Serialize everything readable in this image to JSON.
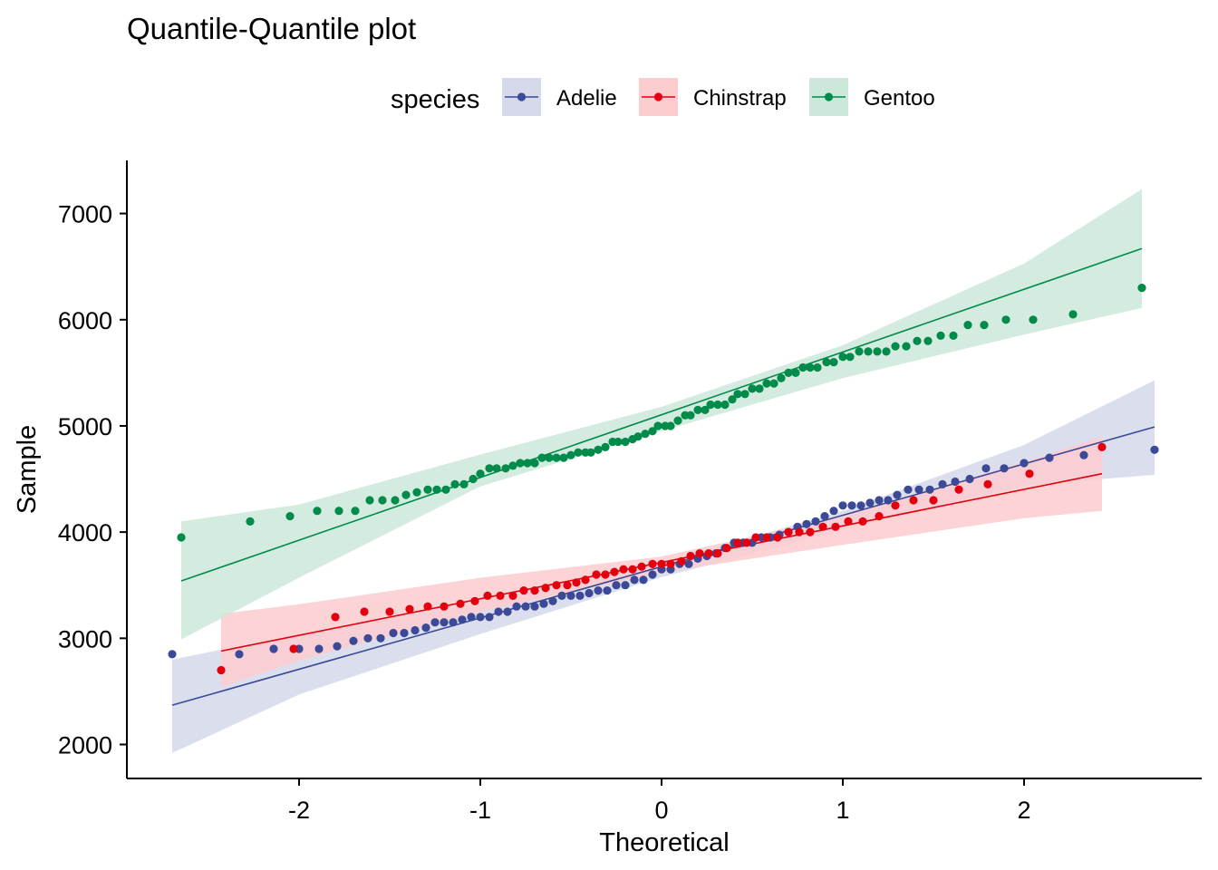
{
  "chart_data": {
    "type": "scatter",
    "title": "Quantile-Quantile plot",
    "xlabel": "Theoretical",
    "ylabel": "Sample",
    "xlim": [
      -2.95,
      2.98
    ],
    "ylim": [
      1680,
      7500
    ],
    "x_ticks": [
      -2,
      -1,
      0,
      1,
      2
    ],
    "x_tick_labels": [
      "-2",
      "-1",
      "0",
      "1",
      "2"
    ],
    "y_ticks": [
      2000,
      3000,
      4000,
      5000,
      6000,
      7000
    ],
    "y_tick_labels": [
      "2000",
      "3000",
      "4000",
      "5000",
      "6000",
      "7000"
    ],
    "grid": false,
    "legend": {
      "title": "species",
      "position": "top",
      "entries": [
        "Adelie",
        "Chinstrap",
        "Gentoo"
      ]
    },
    "series": [
      {
        "name": "Adelie",
        "color": "#3b4996",
        "band_color": "#d5d9ea",
        "line": [
          [
            -2.7,
            2370
          ],
          [
            2.72,
            4990
          ]
        ],
        "band_upper": [
          [
            -2.7,
            2800
          ],
          [
            -2,
            3040
          ],
          [
            -1,
            3330
          ],
          [
            0,
            3705
          ],
          [
            1,
            4200
          ],
          [
            2,
            4820
          ],
          [
            2.72,
            5430
          ]
        ],
        "band_lower": [
          [
            -2.7,
            1920
          ],
          [
            -2,
            2470
          ],
          [
            -1,
            3040
          ],
          [
            0,
            3575
          ],
          [
            1,
            4020
          ],
          [
            2,
            4440
          ],
          [
            2.72,
            4540
          ]
        ],
        "points": [
          [
            -2.7,
            2850
          ],
          [
            -2.33,
            2850
          ],
          [
            -2.14,
            2900
          ],
          [
            -2.0,
            2900
          ],
          [
            -1.89,
            2900
          ],
          [
            -1.79,
            2925
          ],
          [
            -1.7,
            2975
          ],
          [
            -1.62,
            3000
          ],
          [
            -1.55,
            3000
          ],
          [
            -1.48,
            3050
          ],
          [
            -1.42,
            3050
          ],
          [
            -1.36,
            3075
          ],
          [
            -1.3,
            3100
          ],
          [
            -1.25,
            3150
          ],
          [
            -1.2,
            3150
          ],
          [
            -1.15,
            3150
          ],
          [
            -1.1,
            3175
          ],
          [
            -1.05,
            3200
          ],
          [
            -1.0,
            3200
          ],
          [
            -0.95,
            3200
          ],
          [
            -0.9,
            3250
          ],
          [
            -0.85,
            3250
          ],
          [
            -0.8,
            3300
          ],
          [
            -0.75,
            3300
          ],
          [
            -0.7,
            3300
          ],
          [
            -0.65,
            3325
          ],
          [
            -0.6,
            3350
          ],
          [
            -0.55,
            3400
          ],
          [
            -0.5,
            3400
          ],
          [
            -0.45,
            3400
          ],
          [
            -0.4,
            3425
          ],
          [
            -0.35,
            3450
          ],
          [
            -0.3,
            3450
          ],
          [
            -0.25,
            3500
          ],
          [
            -0.2,
            3500
          ],
          [
            -0.15,
            3550
          ],
          [
            -0.1,
            3550
          ],
          [
            -0.05,
            3600
          ],
          [
            0.0,
            3650
          ],
          [
            0.05,
            3650
          ],
          [
            0.1,
            3700
          ],
          [
            0.15,
            3700
          ],
          [
            0.2,
            3750
          ],
          [
            0.25,
            3775
          ],
          [
            0.3,
            3800
          ],
          [
            0.35,
            3850
          ],
          [
            0.4,
            3900
          ],
          [
            0.45,
            3900
          ],
          [
            0.5,
            3900
          ],
          [
            0.55,
            3950
          ],
          [
            0.6,
            3950
          ],
          [
            0.65,
            3975
          ],
          [
            0.7,
            4000
          ],
          [
            0.75,
            4050
          ],
          [
            0.8,
            4075
          ],
          [
            0.85,
            4100
          ],
          [
            0.9,
            4150
          ],
          [
            0.95,
            4200
          ],
          [
            1.0,
            4250
          ],
          [
            1.05,
            4250
          ],
          [
            1.1,
            4250
          ],
          [
            1.15,
            4275
          ],
          [
            1.2,
            4300
          ],
          [
            1.25,
            4300
          ],
          [
            1.3,
            4350
          ],
          [
            1.36,
            4400
          ],
          [
            1.42,
            4400
          ],
          [
            1.48,
            4400
          ],
          [
            1.55,
            4450
          ],
          [
            1.62,
            4475
          ],
          [
            1.7,
            4500
          ],
          [
            1.79,
            4600
          ],
          [
            1.89,
            4600
          ],
          [
            2.0,
            4650
          ],
          [
            2.14,
            4700
          ],
          [
            2.33,
            4725
          ],
          [
            2.72,
            4775
          ]
        ]
      },
      {
        "name": "Chinstrap",
        "color": "#e2000f",
        "band_color": "#fccccf",
        "line": [
          [
            -2.43,
            2880
          ],
          [
            2.43,
            4550
          ]
        ],
        "band_upper": [
          [
            -2.43,
            3230
          ],
          [
            -2,
            3320
          ],
          [
            -1,
            3570
          ],
          [
            0,
            3770
          ],
          [
            1,
            4150
          ],
          [
            2,
            4660
          ],
          [
            2.43,
            4900
          ]
        ],
        "band_lower": [
          [
            -2.43,
            2540
          ],
          [
            -2,
            2790
          ],
          [
            -1,
            3250
          ],
          [
            0,
            3620
          ],
          [
            1,
            3880
          ],
          [
            2,
            4130
          ],
          [
            2.43,
            4200
          ]
        ],
        "points": [
          [
            -2.43,
            2700
          ],
          [
            -2.03,
            2900
          ],
          [
            -1.8,
            3200
          ],
          [
            -1.64,
            3250
          ],
          [
            -1.5,
            3250
          ],
          [
            -1.39,
            3275
          ],
          [
            -1.29,
            3300
          ],
          [
            -1.2,
            3300
          ],
          [
            -1.11,
            3325
          ],
          [
            -1.03,
            3350
          ],
          [
            -0.96,
            3400
          ],
          [
            -0.89,
            3400
          ],
          [
            -0.82,
            3400
          ],
          [
            -0.76,
            3450
          ],
          [
            -0.7,
            3450
          ],
          [
            -0.64,
            3475
          ],
          [
            -0.58,
            3500
          ],
          [
            -0.52,
            3500
          ],
          [
            -0.47,
            3525
          ],
          [
            -0.42,
            3550
          ],
          [
            -0.36,
            3600
          ],
          [
            -0.31,
            3600
          ],
          [
            -0.26,
            3625
          ],
          [
            -0.21,
            3650
          ],
          [
            -0.16,
            3650
          ],
          [
            -0.11,
            3675
          ],
          [
            -0.05,
            3700
          ],
          [
            0.0,
            3700
          ],
          [
            0.05,
            3700
          ],
          [
            0.11,
            3725
          ],
          [
            0.16,
            3775
          ],
          [
            0.21,
            3800
          ],
          [
            0.26,
            3800
          ],
          [
            0.31,
            3800
          ],
          [
            0.36,
            3850
          ],
          [
            0.42,
            3900
          ],
          [
            0.47,
            3900
          ],
          [
            0.52,
            3950
          ],
          [
            0.58,
            3950
          ],
          [
            0.64,
            3950
          ],
          [
            0.7,
            4000
          ],
          [
            0.76,
            4000
          ],
          [
            0.82,
            4000
          ],
          [
            0.89,
            4050
          ],
          [
            0.96,
            4050
          ],
          [
            1.03,
            4100
          ],
          [
            1.11,
            4100
          ],
          [
            1.2,
            4150
          ],
          [
            1.29,
            4250
          ],
          [
            1.39,
            4300
          ],
          [
            1.5,
            4300
          ],
          [
            1.64,
            4400
          ],
          [
            1.8,
            4450
          ],
          [
            2.03,
            4550
          ],
          [
            2.43,
            4800
          ]
        ]
      },
      {
        "name": "Gentoo",
        "color": "#008b4a",
        "band_color": "#cce8da",
        "line": [
          [
            -2.65,
            3540
          ],
          [
            2.65,
            6670
          ]
        ],
        "band_upper": [
          [
            -2.65,
            4100
          ],
          [
            -2,
            4260
          ],
          [
            -1,
            4730
          ],
          [
            0,
            5180
          ],
          [
            1,
            5760
          ],
          [
            2,
            6530
          ],
          [
            2.65,
            7230
          ]
        ],
        "band_lower": [
          [
            -2.65,
            2990
          ],
          [
            -2,
            3570
          ],
          [
            -1,
            4430
          ],
          [
            0,
            4950
          ],
          [
            1,
            5450
          ],
          [
            2,
            5860
          ],
          [
            2.65,
            6110
          ]
        ],
        "points": [
          [
            -2.65,
            3950
          ],
          [
            -2.27,
            4100
          ],
          [
            -2.05,
            4150
          ],
          [
            -1.9,
            4200
          ],
          [
            -1.78,
            4200
          ],
          [
            -1.69,
            4200
          ],
          [
            -1.61,
            4300
          ],
          [
            -1.54,
            4300
          ],
          [
            -1.47,
            4300
          ],
          [
            -1.41,
            4350
          ],
          [
            -1.35,
            4375
          ],
          [
            -1.29,
            4400
          ],
          [
            -1.24,
            4400
          ],
          [
            -1.19,
            4400
          ],
          [
            -1.14,
            4450
          ],
          [
            -1.09,
            4450
          ],
          [
            -1.04,
            4500
          ],
          [
            -1.0,
            4550
          ],
          [
            -0.95,
            4600
          ],
          [
            -0.91,
            4600
          ],
          [
            -0.86,
            4600
          ],
          [
            -0.82,
            4625
          ],
          [
            -0.78,
            4650
          ],
          [
            -0.74,
            4650
          ],
          [
            -0.7,
            4650
          ],
          [
            -0.66,
            4700
          ],
          [
            -0.62,
            4700
          ],
          [
            -0.58,
            4700
          ],
          [
            -0.54,
            4700
          ],
          [
            -0.5,
            4725
          ],
          [
            -0.46,
            4750
          ],
          [
            -0.42,
            4750
          ],
          [
            -0.39,
            4750
          ],
          [
            -0.35,
            4775
          ],
          [
            -0.31,
            4800
          ],
          [
            -0.27,
            4850
          ],
          [
            -0.24,
            4850
          ],
          [
            -0.2,
            4850
          ],
          [
            -0.16,
            4875
          ],
          [
            -0.13,
            4900
          ],
          [
            -0.09,
            4925
          ],
          [
            -0.05,
            4950
          ],
          [
            -0.02,
            5000
          ],
          [
            0.02,
            5000
          ],
          [
            0.05,
            5000
          ],
          [
            0.09,
            5050
          ],
          [
            0.13,
            5100
          ],
          [
            0.16,
            5100
          ],
          [
            0.2,
            5150
          ],
          [
            0.24,
            5150
          ],
          [
            0.27,
            5200
          ],
          [
            0.31,
            5200
          ],
          [
            0.35,
            5200
          ],
          [
            0.39,
            5250
          ],
          [
            0.42,
            5300
          ],
          [
            0.46,
            5300
          ],
          [
            0.5,
            5350
          ],
          [
            0.54,
            5350
          ],
          [
            0.58,
            5400
          ],
          [
            0.62,
            5400
          ],
          [
            0.66,
            5450
          ],
          [
            0.7,
            5500
          ],
          [
            0.74,
            5500
          ],
          [
            0.78,
            5550
          ],
          [
            0.82,
            5550
          ],
          [
            0.86,
            5550
          ],
          [
            0.91,
            5600
          ],
          [
            0.95,
            5600
          ],
          [
            1.0,
            5650
          ],
          [
            1.04,
            5650
          ],
          [
            1.09,
            5700
          ],
          [
            1.14,
            5700
          ],
          [
            1.19,
            5700
          ],
          [
            1.24,
            5700
          ],
          [
            1.29,
            5750
          ],
          [
            1.35,
            5750
          ],
          [
            1.41,
            5800
          ],
          [
            1.47,
            5800
          ],
          [
            1.54,
            5850
          ],
          [
            1.61,
            5850
          ],
          [
            1.69,
            5950
          ],
          [
            1.78,
            5950
          ],
          [
            1.9,
            6000
          ],
          [
            2.05,
            6000
          ],
          [
            2.27,
            6050
          ],
          [
            2.65,
            6300
          ]
        ]
      }
    ]
  }
}
